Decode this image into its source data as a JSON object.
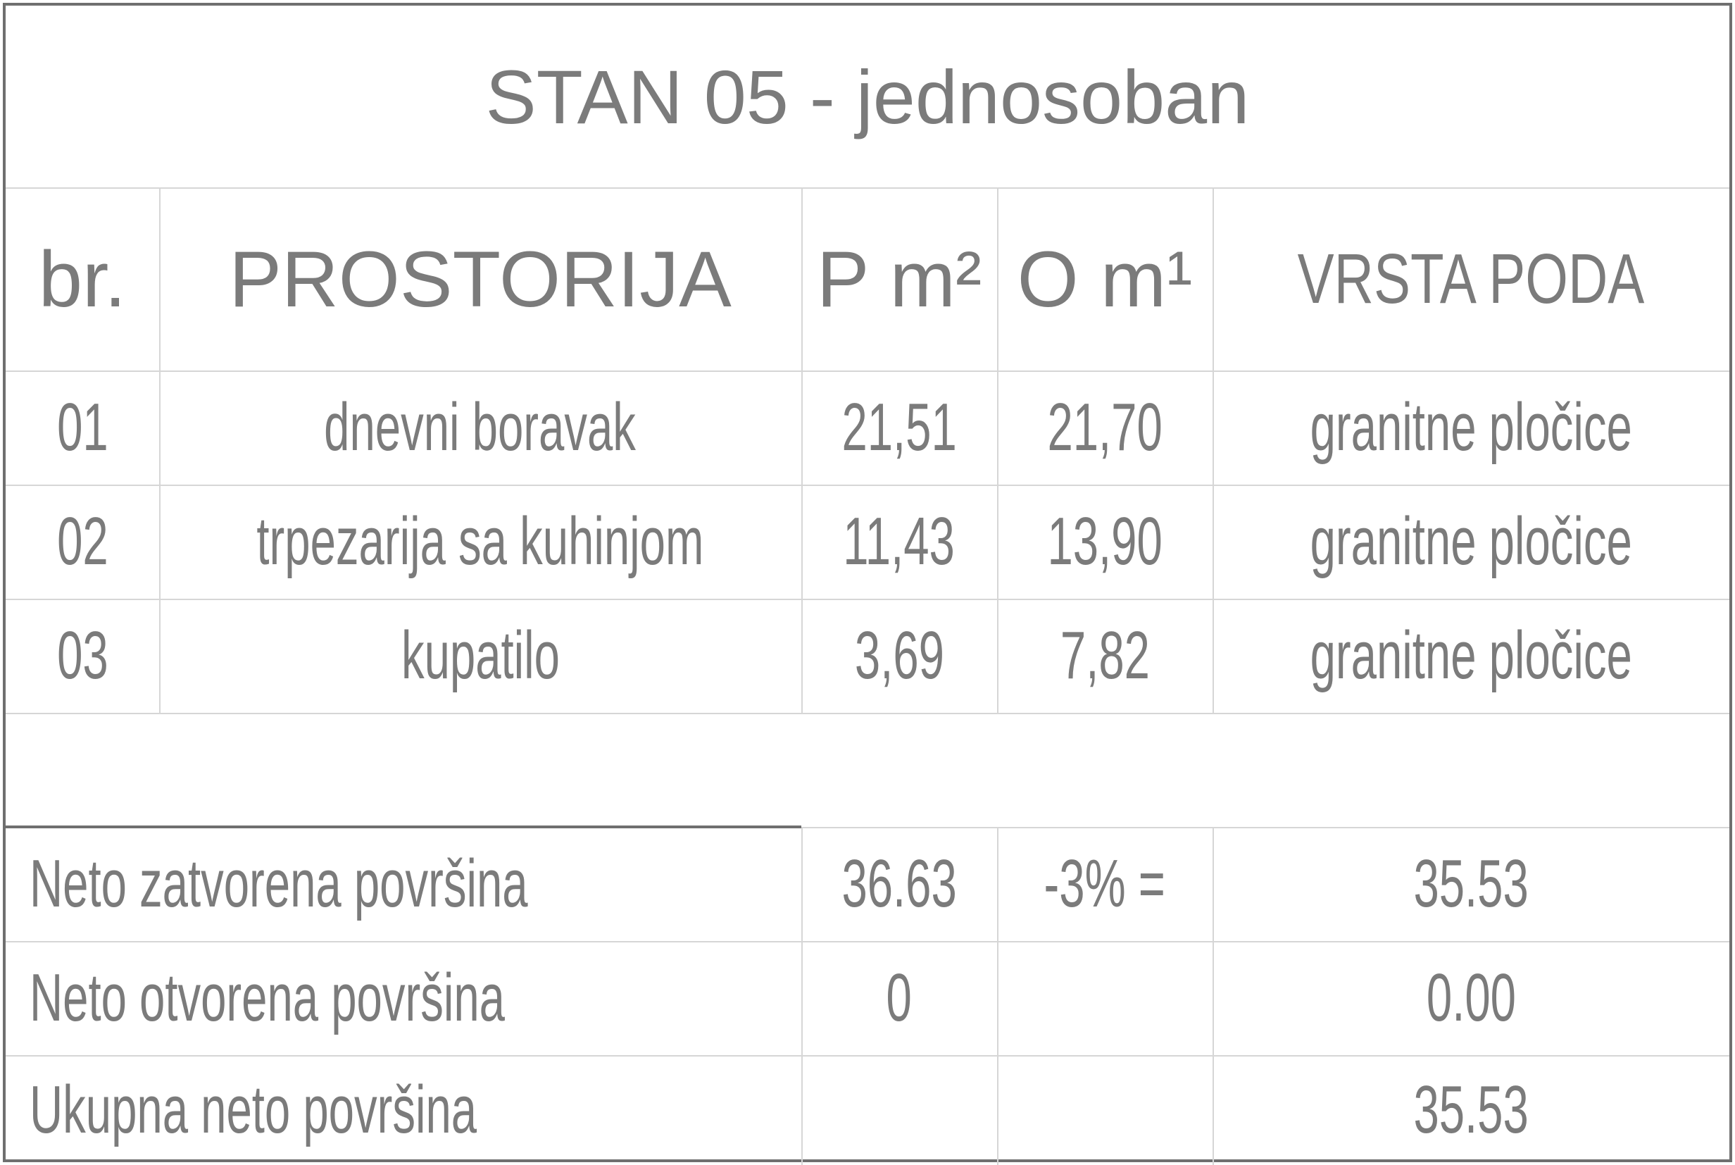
{
  "title": "STAN 05 - jednosoban",
  "headers": {
    "nr": "br.",
    "room": "PROSTORIJA",
    "area": "P m²",
    "perimeter": "O m¹",
    "floor": "VRSTA PODA"
  },
  "rows": [
    {
      "nr": "01",
      "room": "dnevni boravak",
      "area": "21,51",
      "perimeter": "21,70",
      "floor": "granitne pločice"
    },
    {
      "nr": "02",
      "room": "trpezarija sa kuhinjom",
      "area": "11,43",
      "perimeter": "13,90",
      "floor": "granitne pločice"
    },
    {
      "nr": "03",
      "room": "kupatilo",
      "area": "3,69",
      "perimeter": "7,82",
      "floor": "granitne pločice"
    }
  ],
  "summary": [
    {
      "label": "Neto zatvorena površina",
      "area": "36.63",
      "op": "-3% =",
      "result": "35.53"
    },
    {
      "label": "Neto otvorena površina",
      "area": "0",
      "op": "",
      "result": "0.00"
    },
    {
      "label": "Ukupna neto površina",
      "area": "",
      "op": "",
      "result": "35.53"
    }
  ]
}
